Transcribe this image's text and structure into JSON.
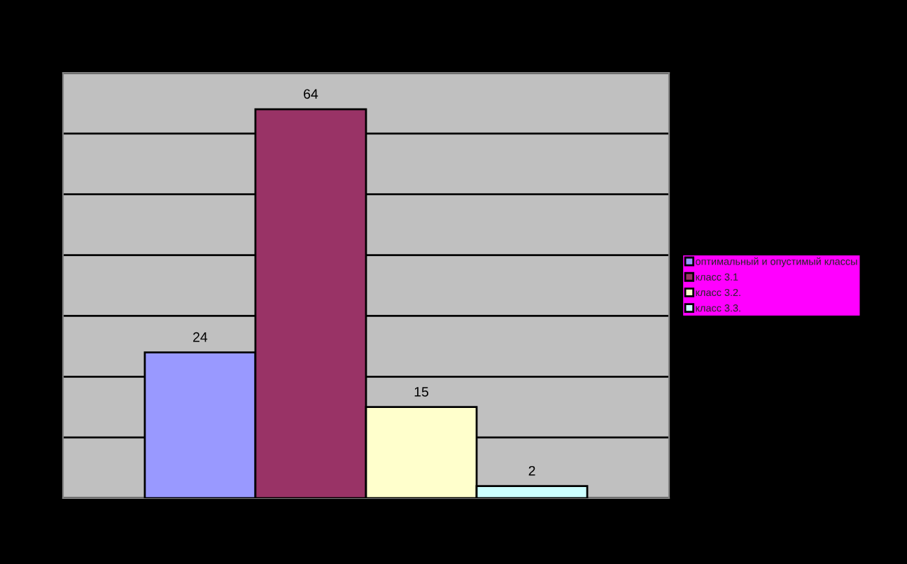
{
  "chart_data": {
    "type": "bar",
    "categories": [
      null
    ],
    "series": [
      {
        "name": "оптимальный и опустимый классы",
        "color": "#9999ff",
        "values": [
          24
        ]
      },
      {
        "name": "класс 3.1",
        "color": "#993366",
        "values": [
          64
        ]
      },
      {
        "name": "класс 3.2.",
        "color": "#ffffcc",
        "values": [
          15
        ]
      },
      {
        "name": "класс 3.3.",
        "color": "#ccffff",
        "values": [
          2
        ]
      }
    ],
    "ylim": [
      0,
      70
    ],
    "yticks": [
      {
        "value": 0,
        "label": null
      },
      {
        "value": 10,
        "label": null
      },
      {
        "value": 20,
        "label": null
      },
      {
        "value": 30,
        "label": null
      },
      {
        "value": 40,
        "label": null
      },
      {
        "value": 50,
        "label": null
      },
      {
        "value": 60,
        "label": null
      },
      {
        "value": 70,
        "label": null
      }
    ],
    "grid": "y",
    "legend": "right",
    "data_labels": true
  }
}
